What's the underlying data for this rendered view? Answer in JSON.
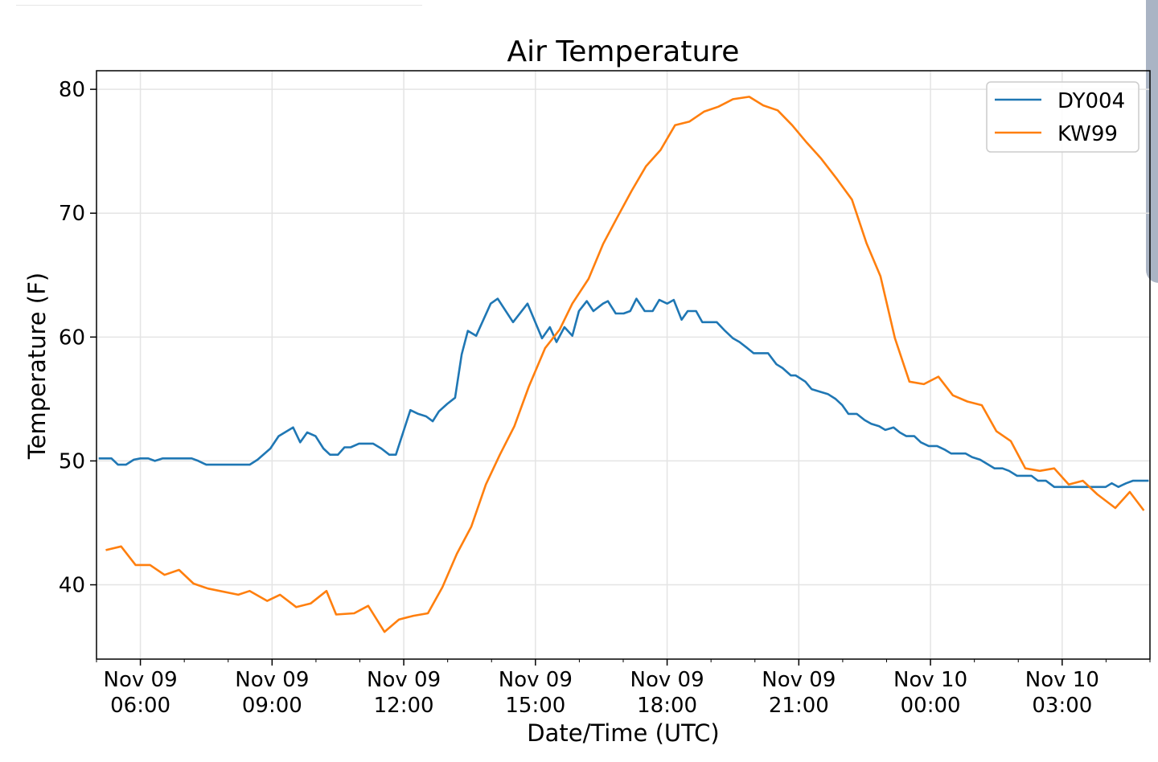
{
  "chart_data": {
    "type": "line",
    "title": "Air Temperature",
    "xlabel": "Date/Time (UTC)",
    "ylabel": "Temperature (F)",
    "x_units": "hours since Nov 09 00:00 UTC",
    "xlim": [
      5.0,
      29.0
    ],
    "ylim": [
      34.0,
      81.5
    ],
    "grid": true,
    "legend_position": "top-right",
    "x_ticks": [
      {
        "value": 6,
        "line1": "Nov 09",
        "line2": "06:00"
      },
      {
        "value": 9,
        "line1": "Nov 09",
        "line2": "09:00"
      },
      {
        "value": 12,
        "line1": "Nov 09",
        "line2": "12:00"
      },
      {
        "value": 15,
        "line1": "Nov 09",
        "line2": "15:00"
      },
      {
        "value": 18,
        "line1": "Nov 09",
        "line2": "18:00"
      },
      {
        "value": 21,
        "line1": "Nov 09",
        "line2": "21:00"
      },
      {
        "value": 24,
        "line1": "Nov 10",
        "line2": "00:00"
      },
      {
        "value": 27,
        "line1": "Nov 10",
        "line2": "03:00"
      }
    ],
    "y_ticks": [
      40,
      50,
      60,
      70,
      80
    ],
    "series": [
      {
        "name": "DY004",
        "color": "#1f77b4",
        "x": [
          5.05,
          5.34,
          5.49,
          5.67,
          5.85,
          6.0,
          6.18,
          6.33,
          6.51,
          7.17,
          7.32,
          7.5,
          8.49,
          8.67,
          8.96,
          9.15,
          9.48,
          9.64,
          9.8,
          9.99,
          10.17,
          10.32,
          10.5,
          10.65,
          10.79,
          10.98,
          11.3,
          11.49,
          11.67,
          11.82,
          12.15,
          12.33,
          12.51,
          12.66,
          12.8,
          12.99,
          13.17,
          13.32,
          13.46,
          13.65,
          13.98,
          14.14,
          14.49,
          14.82,
          15.15,
          15.33,
          15.48,
          15.66,
          15.84,
          15.99,
          16.17,
          16.32,
          16.54,
          16.65,
          16.83,
          17.01,
          17.16,
          17.3,
          17.49,
          17.67,
          17.82,
          18.0,
          18.15,
          18.33,
          18.47,
          18.66,
          18.8,
          19.13,
          19.32,
          19.5,
          19.65,
          19.83,
          19.97,
          20.3,
          20.49,
          20.63,
          20.82,
          20.93,
          21.15,
          21.29,
          21.47,
          21.66,
          21.84,
          21.99,
          22.13,
          22.32,
          22.5,
          22.65,
          22.83,
          22.97,
          23.16,
          23.3,
          23.45,
          23.63,
          23.78,
          23.96,
          24.15,
          24.33,
          24.47,
          24.8,
          24.95,
          25.13,
          25.46,
          25.64,
          25.79,
          25.97,
          26.3,
          26.45,
          26.63,
          26.82,
          27.99,
          28.13,
          28.28,
          28.46,
          28.61,
          28.97
        ],
        "y": [
          50.2,
          50.2,
          49.7,
          49.7,
          50.1,
          50.2,
          50.2,
          50.0,
          50.2,
          50.2,
          50.0,
          49.7,
          49.7,
          50.1,
          51.0,
          52.0,
          52.7,
          51.5,
          52.3,
          52.0,
          51.0,
          50.5,
          50.5,
          51.1,
          51.1,
          51.4,
          51.4,
          51.0,
          50.5,
          50.5,
          54.1,
          53.8,
          53.6,
          53.2,
          54.0,
          54.6,
          55.1,
          58.6,
          60.5,
          60.1,
          62.7,
          63.1,
          61.2,
          62.7,
          59.9,
          60.8,
          59.6,
          60.8,
          60.1,
          62.1,
          62.9,
          62.1,
          62.7,
          62.9,
          61.9,
          61.9,
          62.1,
          63.1,
          62.1,
          62.1,
          63.0,
          62.7,
          63.0,
          61.4,
          62.1,
          62.1,
          61.2,
          61.2,
          60.5,
          59.9,
          59.6,
          59.1,
          58.7,
          58.7,
          57.8,
          57.5,
          56.9,
          56.9,
          56.4,
          55.8,
          55.6,
          55.4,
          55.0,
          54.5,
          53.8,
          53.8,
          53.3,
          53.0,
          52.8,
          52.5,
          52.7,
          52.3,
          52.0,
          52.0,
          51.5,
          51.2,
          51.2,
          50.9,
          50.6,
          50.6,
          50.3,
          50.1,
          49.4,
          49.4,
          49.2,
          48.8,
          48.8,
          48.4,
          48.4,
          47.9,
          47.9,
          48.2,
          47.9,
          48.2,
          48.4,
          48.4
        ]
      },
      {
        "name": "KW99",
        "color": "#ff7f0e",
        "x": [
          5.21,
          5.56,
          5.89,
          6.22,
          6.55,
          6.88,
          7.21,
          7.54,
          8.23,
          8.49,
          8.89,
          9.18,
          9.55,
          9.88,
          10.24,
          10.46,
          10.87,
          11.19,
          11.56,
          11.89,
          12.22,
          12.55,
          12.88,
          13.21,
          13.54,
          13.87,
          14.19,
          14.52,
          14.85,
          15.22,
          15.55,
          15.84,
          16.21,
          16.54,
          16.87,
          17.19,
          17.52,
          17.85,
          18.18,
          18.51,
          18.84,
          19.17,
          19.5,
          19.87,
          20.19,
          20.52,
          20.85,
          21.18,
          21.51,
          21.88,
          22.21,
          22.54,
          22.86,
          23.19,
          23.52,
          23.85,
          24.18,
          24.51,
          24.84,
          25.17,
          25.5,
          25.83,
          26.16,
          26.49,
          26.82,
          27.15,
          27.47,
          27.8,
          28.21,
          28.54,
          28.86
        ],
        "y": [
          42.8,
          43.1,
          41.6,
          41.6,
          40.8,
          41.2,
          40.1,
          39.7,
          39.2,
          39.5,
          38.7,
          39.2,
          38.2,
          38.5,
          39.5,
          37.6,
          37.7,
          38.3,
          36.2,
          37.2,
          37.5,
          37.7,
          39.8,
          42.5,
          44.7,
          48.1,
          50.5,
          52.8,
          56.0,
          59.1,
          60.6,
          62.7,
          64.7,
          67.5,
          69.7,
          71.8,
          73.8,
          75.1,
          77.1,
          77.4,
          78.2,
          78.6,
          79.2,
          79.4,
          78.7,
          78.3,
          77.1,
          75.7,
          74.4,
          72.7,
          71.1,
          67.6,
          64.9,
          59.9,
          56.4,
          56.2,
          56.8,
          55.3,
          54.8,
          54.5,
          52.4,
          51.6,
          49.4,
          49.2,
          49.4,
          48.1,
          48.4,
          47.3,
          46.2,
          47.5,
          46.0
        ]
      }
    ]
  }
}
